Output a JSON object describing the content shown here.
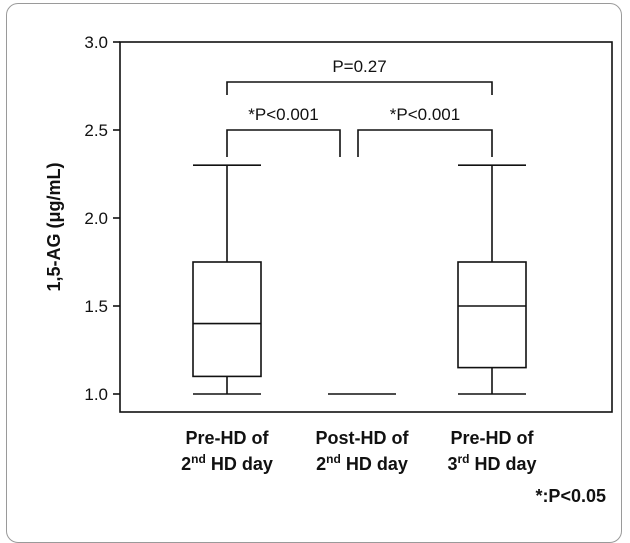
{
  "chart_data": {
    "type": "box",
    "ylabel": "1,5-AG (μg/mL)",
    "ylim": [
      1.0,
      3.0
    ],
    "yticks": [
      "1.0",
      "1.5",
      "2.0",
      "2.5",
      "3.0"
    ],
    "categories": [
      {
        "line1": "Pre-HD of",
        "line2_num": "2",
        "line2_sup": "nd",
        "line2_rest": " HD day"
      },
      {
        "line1": "Post-HD of",
        "line2_num": "2",
        "line2_sup": "nd",
        "line2_rest": " HD day"
      },
      {
        "line1": "Pre-HD of",
        "line2_num": "3",
        "line2_sup": "rd",
        "line2_rest": " HD day"
      }
    ],
    "boxes": [
      {
        "min": 1.0,
        "q1": 1.1,
        "median": 1.4,
        "q3": 1.75,
        "max": 2.3
      },
      {
        "min": 1.0,
        "q1": 1.0,
        "median": 1.0,
        "q3": 1.0,
        "max": 1.0
      },
      {
        "min": 1.0,
        "q1": 1.15,
        "median": 1.5,
        "q3": 1.75,
        "max": 2.3
      }
    ],
    "comparisons": [
      {
        "from": 0,
        "to": 2,
        "label": "P=0.27"
      },
      {
        "from": 0,
        "to": 1,
        "label": "*P<0.001"
      },
      {
        "from": 1,
        "to": 2,
        "label": "*P<0.001"
      }
    ],
    "footnote": "*:P<0.05"
  }
}
